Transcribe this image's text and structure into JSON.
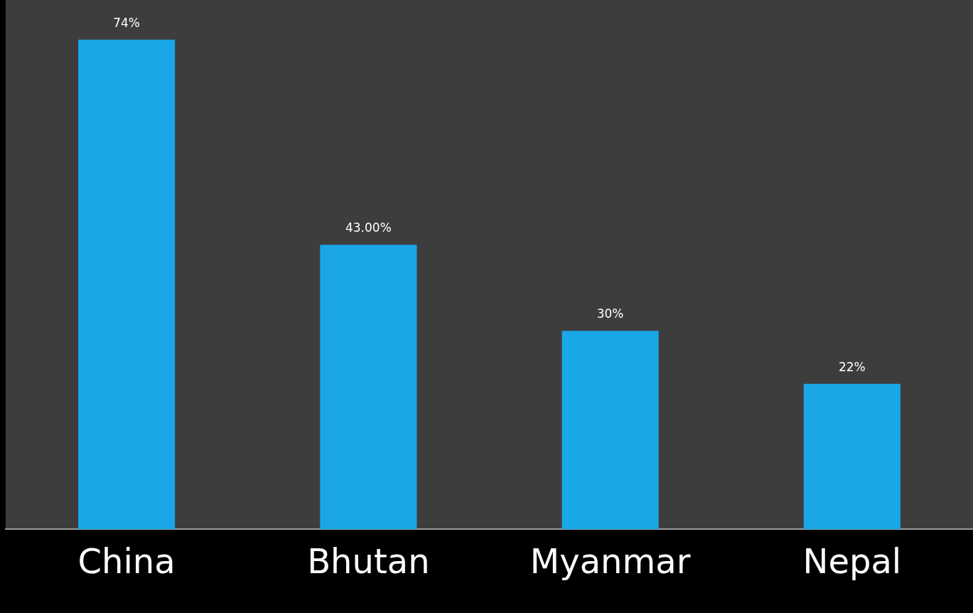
{
  "chart_data": {
    "type": "bar",
    "categories": [
      "China",
      "Bhutan",
      "Myanmar",
      "Nepal"
    ],
    "values": [
      74,
      43,
      30,
      22
    ],
    "value_labels": [
      "74%",
      "43.00%",
      "30%",
      "22%"
    ],
    "color": "#1aa7e8",
    "grid": false,
    "legend": false
  }
}
